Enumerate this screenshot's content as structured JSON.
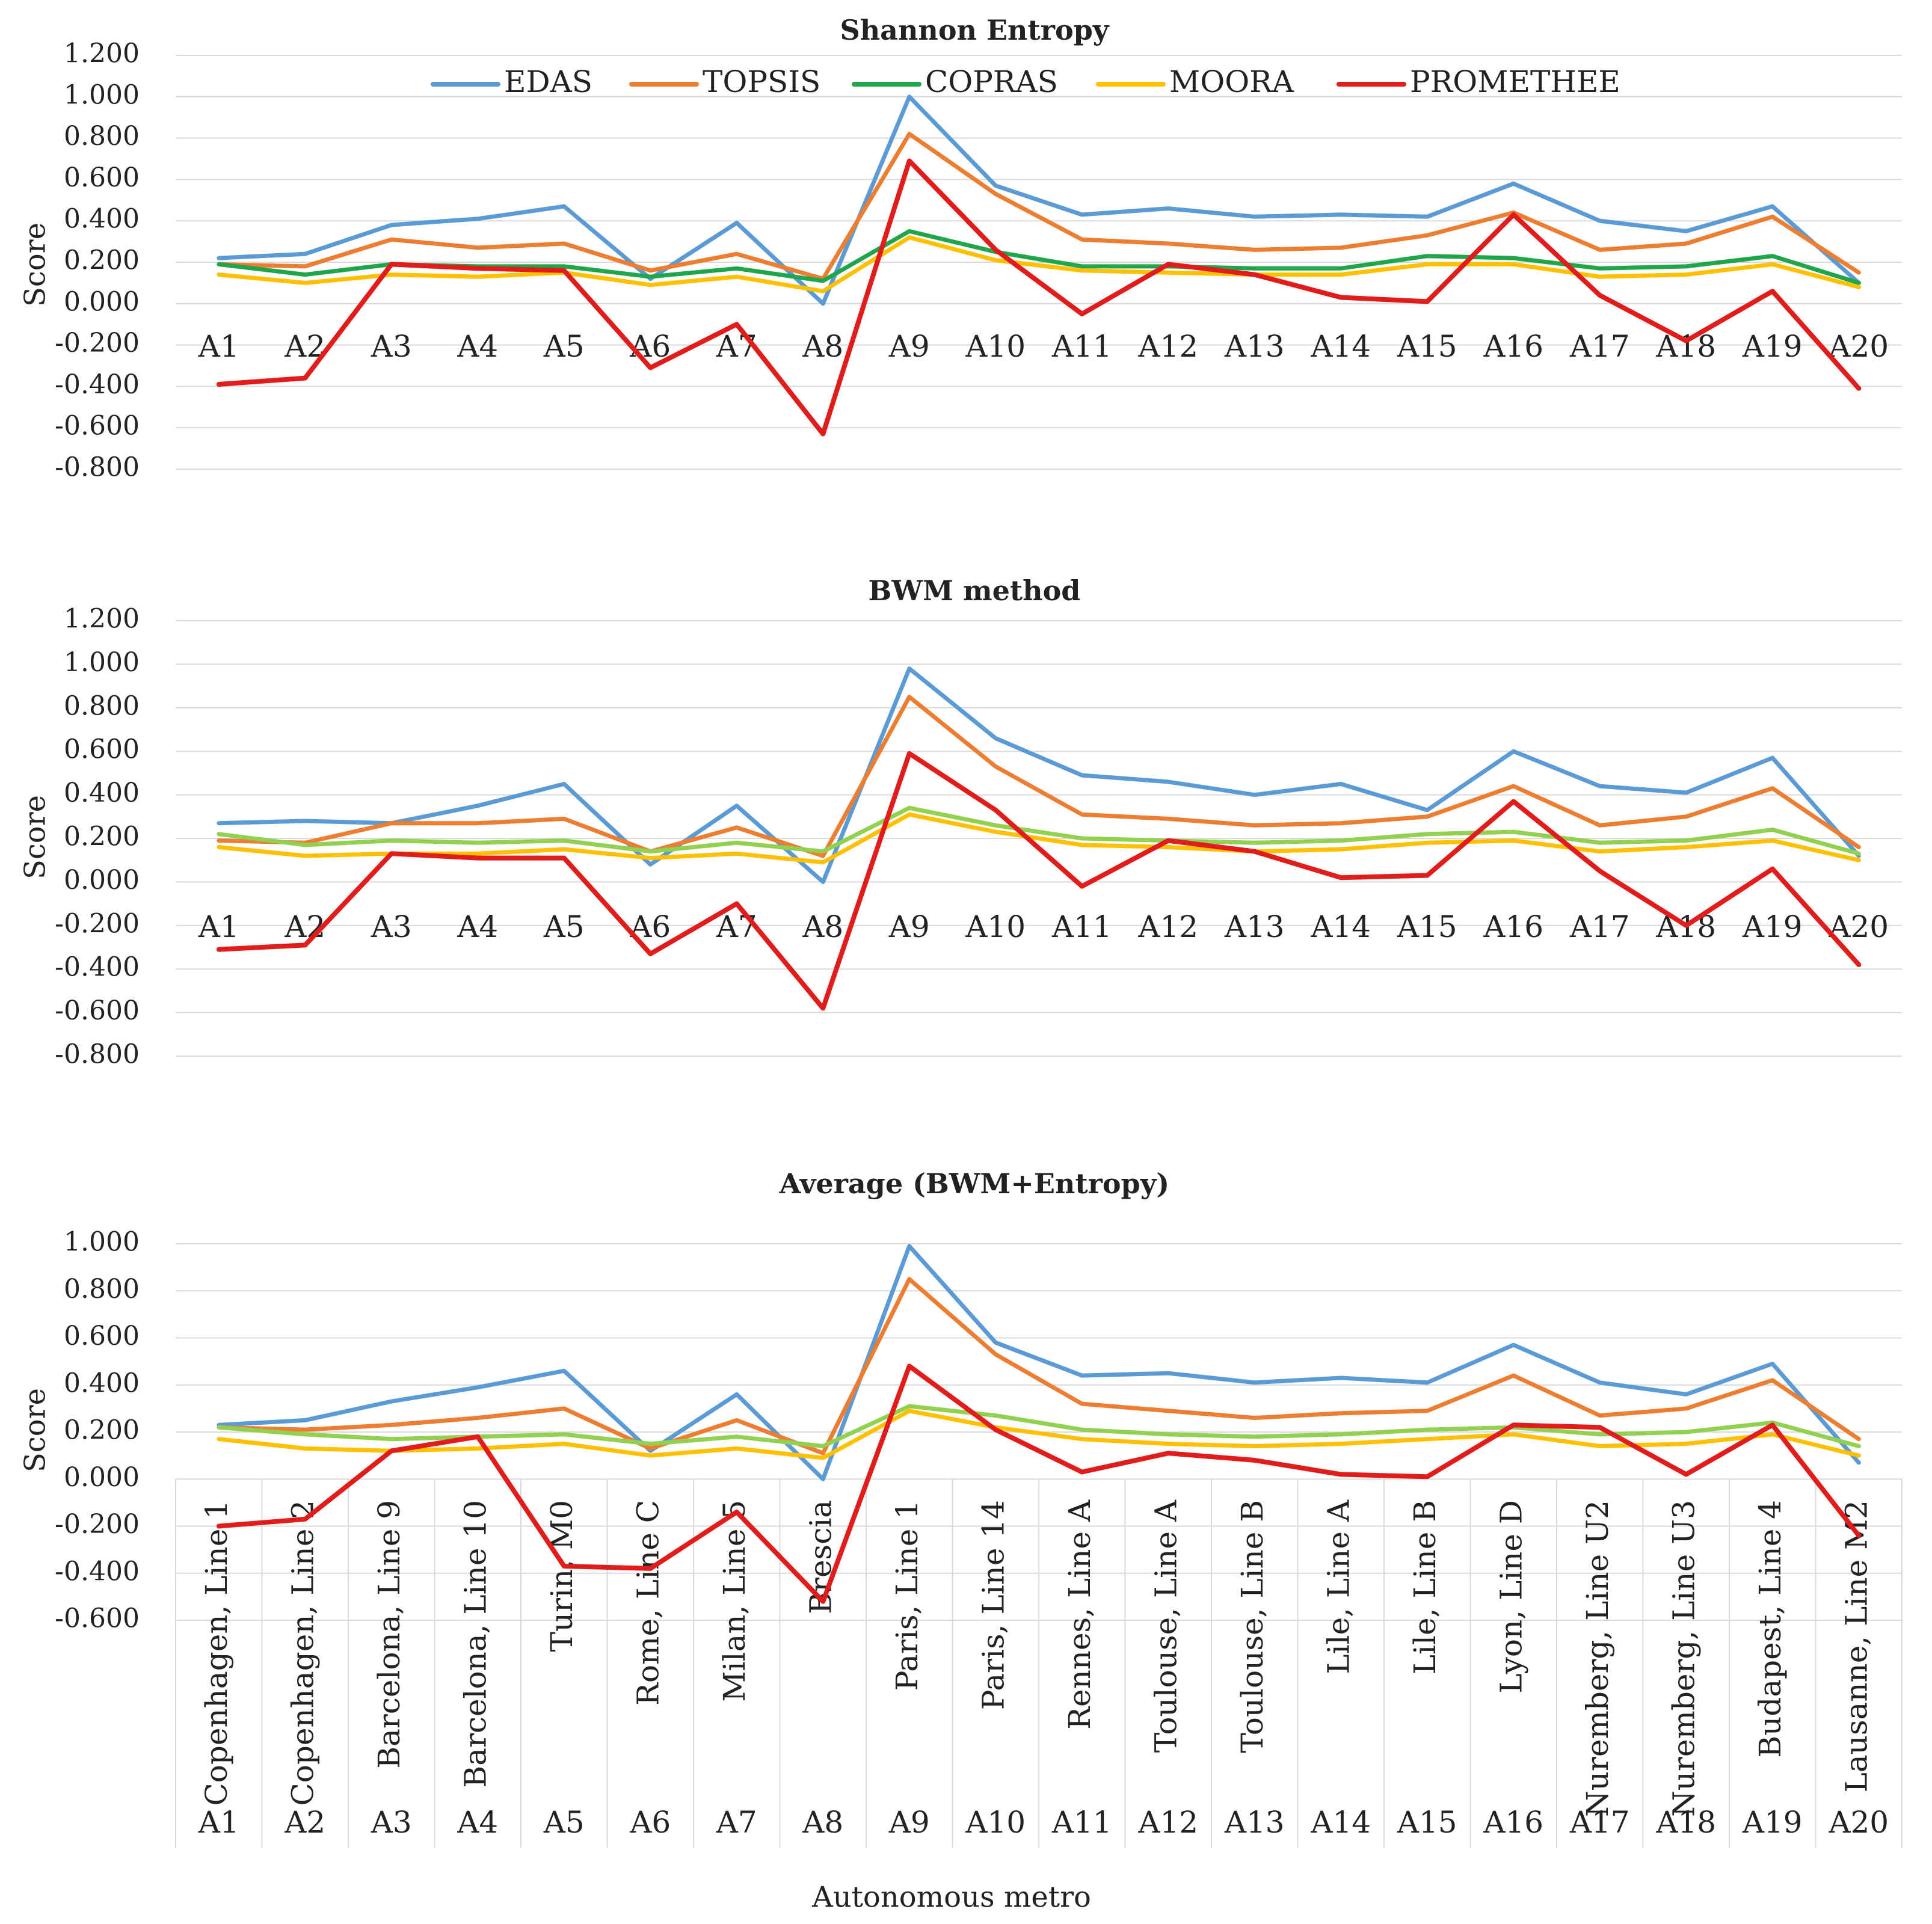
{
  "colors": {
    "EDAS": "#5b9bd5",
    "TOPSIS": "#ed7d31",
    "COPRAS": "#1fa64a",
    "COPRAS_avg": "#92d050",
    "MOORA": "#ffc000",
    "PROMETHEE": "#e21b1b",
    "grid": "#d9d9d9",
    "text": "#222222"
  },
  "x_axis_title": "Autonomous  metro",
  "categories": [
    "A1",
    "A2",
    "A3",
    "A4",
    "A5",
    "A6",
    "A7",
    "A8",
    "A9",
    "A10",
    "A11",
    "A12",
    "A13",
    "A14",
    "A15",
    "A16",
    "A17",
    "A18",
    "A19",
    "A20"
  ],
  "category_names": [
    "Copenhagen, Line 1",
    "Copenhagen, Line 2",
    "Barcelona, Line 9",
    "Barcelona, Line 10",
    "Turin, M0",
    "Rome, Line C",
    "Milan, Line 5",
    "Brescia",
    "Paris, Line 1",
    "Paris, Line 14",
    "Rennes, Line A",
    "Toulouse, Line A",
    "Toulouse, Line B",
    "Lile, Line A",
    "Lile, Line B",
    "Lyon, Line D",
    "Nuremberg, Line U2",
    "Nuremberg, Line U3",
    "Budapest, Line 4",
    "Lausanne, Line M2"
  ],
  "legend": [
    "EDAS",
    "TOPSIS",
    "COPRAS",
    "MOORA",
    "PROMETHEE"
  ],
  "chart_data": [
    {
      "type": "line",
      "title": "Shannon Entropy",
      "ylabel": "Score",
      "ylim": [
        -0.8,
        1.2
      ],
      "yticks": [
        "1.200",
        "1.000",
        "0.800",
        "0.600",
        "0.400",
        "0.200",
        "0.000",
        "-0.200",
        "-0.400",
        "-0.600",
        "-0.800"
      ],
      "series": [
        {
          "name": "EDAS",
          "values": [
            0.22,
            0.24,
            0.38,
            0.41,
            0.47,
            0.12,
            0.39,
            0.0,
            1.0,
            0.57,
            0.43,
            0.46,
            0.42,
            0.43,
            0.42,
            0.58,
            0.4,
            0.35,
            0.47,
            0.1
          ]
        },
        {
          "name": "TOPSIS",
          "values": [
            0.19,
            0.18,
            0.31,
            0.27,
            0.29,
            0.16,
            0.24,
            0.12,
            0.82,
            0.53,
            0.31,
            0.29,
            0.26,
            0.27,
            0.33,
            0.44,
            0.26,
            0.29,
            0.42,
            0.15
          ]
        },
        {
          "name": "COPRAS",
          "values": [
            0.19,
            0.14,
            0.19,
            0.18,
            0.18,
            0.13,
            0.17,
            0.11,
            0.35,
            0.25,
            0.18,
            0.18,
            0.17,
            0.17,
            0.23,
            0.22,
            0.17,
            0.18,
            0.23,
            0.1
          ]
        },
        {
          "name": "MOORA",
          "values": [
            0.14,
            0.1,
            0.14,
            0.13,
            0.15,
            0.09,
            0.13,
            0.06,
            0.32,
            0.21,
            0.16,
            0.15,
            0.14,
            0.14,
            0.19,
            0.19,
            0.13,
            0.14,
            0.19,
            0.08
          ]
        },
        {
          "name": "PROMETHEE",
          "values": [
            -0.39,
            -0.36,
            0.19,
            0.17,
            0.16,
            -0.31,
            -0.1,
            -0.63,
            0.69,
            0.26,
            -0.05,
            0.19,
            0.14,
            0.03,
            0.01,
            0.43,
            0.04,
            -0.18,
            0.06,
            -0.41
          ]
        }
      ]
    },
    {
      "type": "line",
      "title": "BWM method",
      "ylabel": "Score",
      "ylim": [
        -0.8,
        1.2
      ],
      "yticks": [
        "1.200",
        "1.000",
        "0.800",
        "0.600",
        "0.400",
        "0.200",
        "0.000",
        "-0.200",
        "-0.400",
        "-0.600",
        "-0.800"
      ],
      "series": [
        {
          "name": "EDAS",
          "values": [
            0.27,
            0.28,
            0.27,
            0.35,
            0.45,
            0.08,
            0.35,
            0.0,
            0.98,
            0.66,
            0.49,
            0.46,
            0.4,
            0.45,
            0.33,
            0.6,
            0.44,
            0.41,
            0.57,
            0.12
          ]
        },
        {
          "name": "TOPSIS",
          "values": [
            0.19,
            0.18,
            0.27,
            0.27,
            0.29,
            0.14,
            0.25,
            0.12,
            0.85,
            0.53,
            0.31,
            0.29,
            0.26,
            0.27,
            0.3,
            0.44,
            0.26,
            0.3,
            0.43,
            0.16
          ]
        },
        {
          "name": "COPRAS",
          "values": [
            0.22,
            0.17,
            0.19,
            0.18,
            0.19,
            0.14,
            0.18,
            0.14,
            0.34,
            0.26,
            0.2,
            0.19,
            0.18,
            0.19,
            0.22,
            0.23,
            0.18,
            0.19,
            0.24,
            0.13
          ]
        },
        {
          "name": "MOORA",
          "values": [
            0.16,
            0.12,
            0.13,
            0.13,
            0.15,
            0.11,
            0.13,
            0.09,
            0.31,
            0.23,
            0.17,
            0.16,
            0.14,
            0.15,
            0.18,
            0.19,
            0.14,
            0.16,
            0.19,
            0.1
          ]
        },
        {
          "name": "PROMETHEE",
          "values": [
            -0.31,
            -0.29,
            0.13,
            0.11,
            0.11,
            -0.33,
            -0.1,
            -0.58,
            0.59,
            0.33,
            -0.02,
            0.19,
            0.14,
            0.02,
            0.03,
            0.37,
            0.05,
            -0.2,
            0.06,
            -0.38
          ]
        }
      ]
    },
    {
      "type": "line",
      "title": "Average (BWM+Entropy)",
      "ylabel": "Score",
      "ylim": [
        -0.6,
        1.0
      ],
      "yticks": [
        "1.000",
        "0.800",
        "0.600",
        "0.400",
        "0.200",
        "0.000",
        "-0.200",
        "-0.400",
        "-0.600"
      ],
      "series": [
        {
          "name": "EDAS",
          "values": [
            0.23,
            0.25,
            0.33,
            0.39,
            0.46,
            0.12,
            0.36,
            0.0,
            0.99,
            0.58,
            0.44,
            0.45,
            0.41,
            0.43,
            0.41,
            0.57,
            0.41,
            0.36,
            0.49,
            0.07
          ]
        },
        {
          "name": "TOPSIS",
          "values": [
            0.22,
            0.21,
            0.23,
            0.26,
            0.3,
            0.13,
            0.25,
            0.11,
            0.85,
            0.53,
            0.32,
            0.29,
            0.26,
            0.28,
            0.29,
            0.44,
            0.27,
            0.3,
            0.42,
            0.17
          ]
        },
        {
          "name": "COPRAS",
          "values": [
            0.22,
            0.19,
            0.17,
            0.18,
            0.19,
            0.15,
            0.18,
            0.14,
            0.31,
            0.27,
            0.21,
            0.19,
            0.18,
            0.19,
            0.21,
            0.22,
            0.19,
            0.2,
            0.24,
            0.14
          ]
        },
        {
          "name": "MOORA",
          "values": [
            0.17,
            0.13,
            0.12,
            0.13,
            0.15,
            0.1,
            0.13,
            0.09,
            0.29,
            0.22,
            0.17,
            0.15,
            0.14,
            0.15,
            0.17,
            0.19,
            0.14,
            0.15,
            0.19,
            0.1
          ]
        },
        {
          "name": "PROMETHEE",
          "values": [
            -0.2,
            -0.17,
            0.12,
            0.18,
            -0.37,
            -0.38,
            -0.14,
            -0.52,
            0.48,
            0.21,
            0.03,
            0.11,
            0.08,
            0.02,
            0.01,
            0.23,
            0.22,
            0.02,
            0.23,
            -0.24
          ]
        }
      ]
    }
  ]
}
